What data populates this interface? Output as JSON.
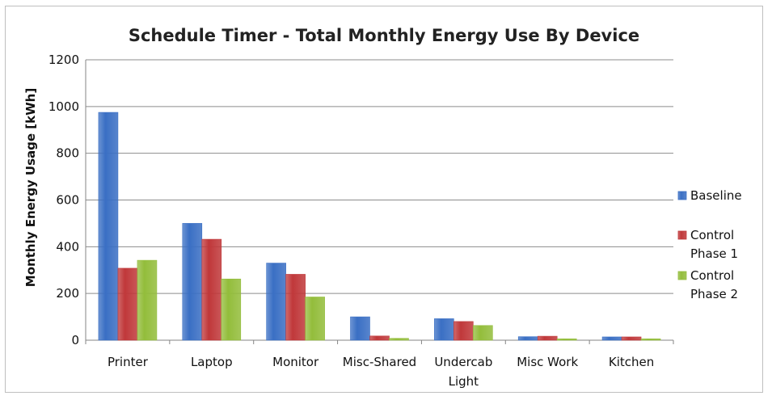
{
  "chart_data": {
    "type": "bar",
    "title": "Schedule Timer - Total Monthly Energy Use By Device",
    "xlabel": "",
    "ylabel": "Monthly Energy Usage [kWh]",
    "ylim": [
      0,
      1200
    ],
    "yticks": [
      0,
      200,
      400,
      600,
      800,
      1000,
      1200
    ],
    "grid": true,
    "legend_position": "right",
    "categories": [
      [
        "Printer"
      ],
      [
        "Laptop"
      ],
      [
        "Monitor"
      ],
      [
        "Misc-Shared"
      ],
      [
        "Undercab",
        "Light"
      ],
      [
        "Misc Work"
      ],
      [
        "Kitchen"
      ]
    ],
    "series": [
      {
        "name": [
          "Baseline"
        ],
        "color": "#3a6fc4",
        "values": [
          975,
          500,
          330,
          100,
          92,
          15,
          14
        ]
      },
      {
        "name": [
          "Control",
          "Phase 1"
        ],
        "color": "#c0383a",
        "values": [
          308,
          432,
          282,
          18,
          80,
          17,
          14
        ]
      },
      {
        "name": [
          "Control",
          "Phase 2"
        ],
        "color": "#93bd3b",
        "values": [
          342,
          262,
          185,
          8,
          63,
          6,
          6
        ]
      }
    ]
  }
}
